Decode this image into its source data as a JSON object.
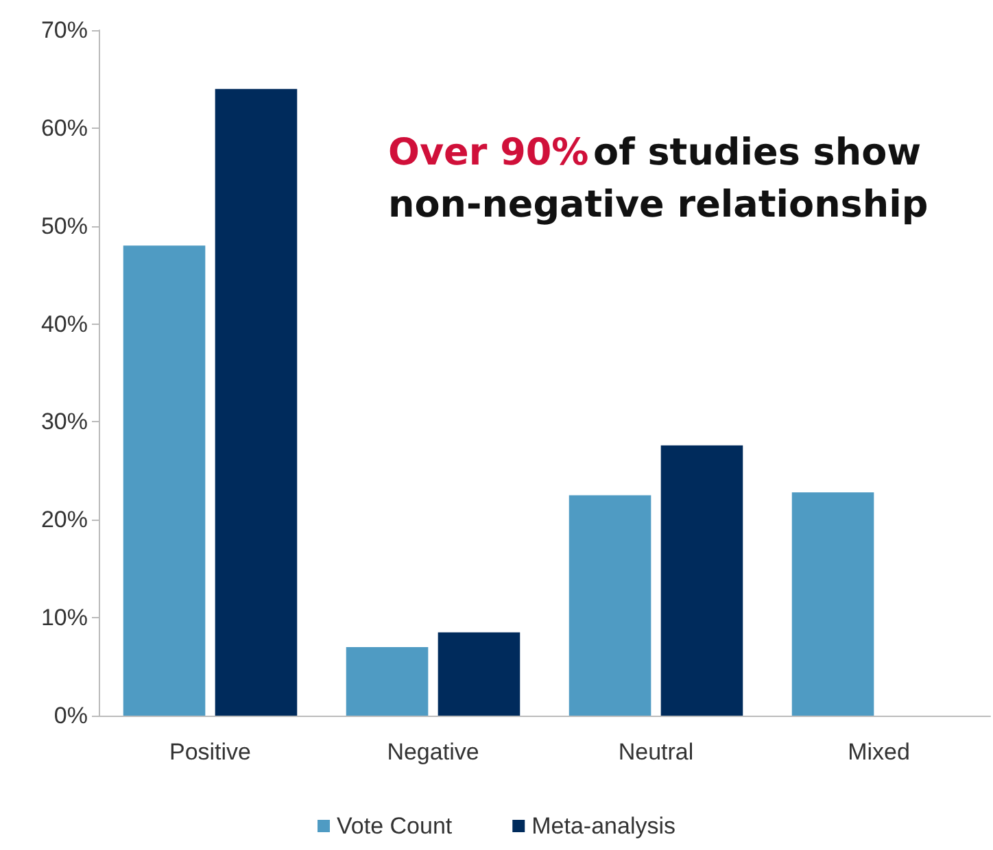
{
  "chart_data": {
    "type": "bar",
    "categories": [
      "Positive",
      "Negative",
      "Neutral",
      "Mixed"
    ],
    "series": [
      {
        "name": "Vote Count",
        "color": "#4f9bc3",
        "values": [
          48,
          7,
          22.5,
          22.8
        ]
      },
      {
        "name": "Meta-analysis",
        "color": "#002b5c",
        "values": [
          64,
          8.5,
          27.6,
          null
        ]
      }
    ],
    "ylim": [
      0,
      70
    ],
    "yticks": [
      {
        "value": 0,
        "label": "0%"
      },
      {
        "value": 10,
        "label": "10%"
      },
      {
        "value": 20,
        "label": "20%"
      },
      {
        "value": 30,
        "label": "30%"
      },
      {
        "value": 40,
        "label": "40%"
      },
      {
        "value": 50,
        "label": "50%"
      },
      {
        "value": 60,
        "label": "60%"
      },
      {
        "value": 70,
        "label": "70%"
      }
    ],
    "annotations": [
      "Over 90%",
      "of studies show",
      "non-negative relationship"
    ],
    "grid": false,
    "legend": "bottom"
  }
}
